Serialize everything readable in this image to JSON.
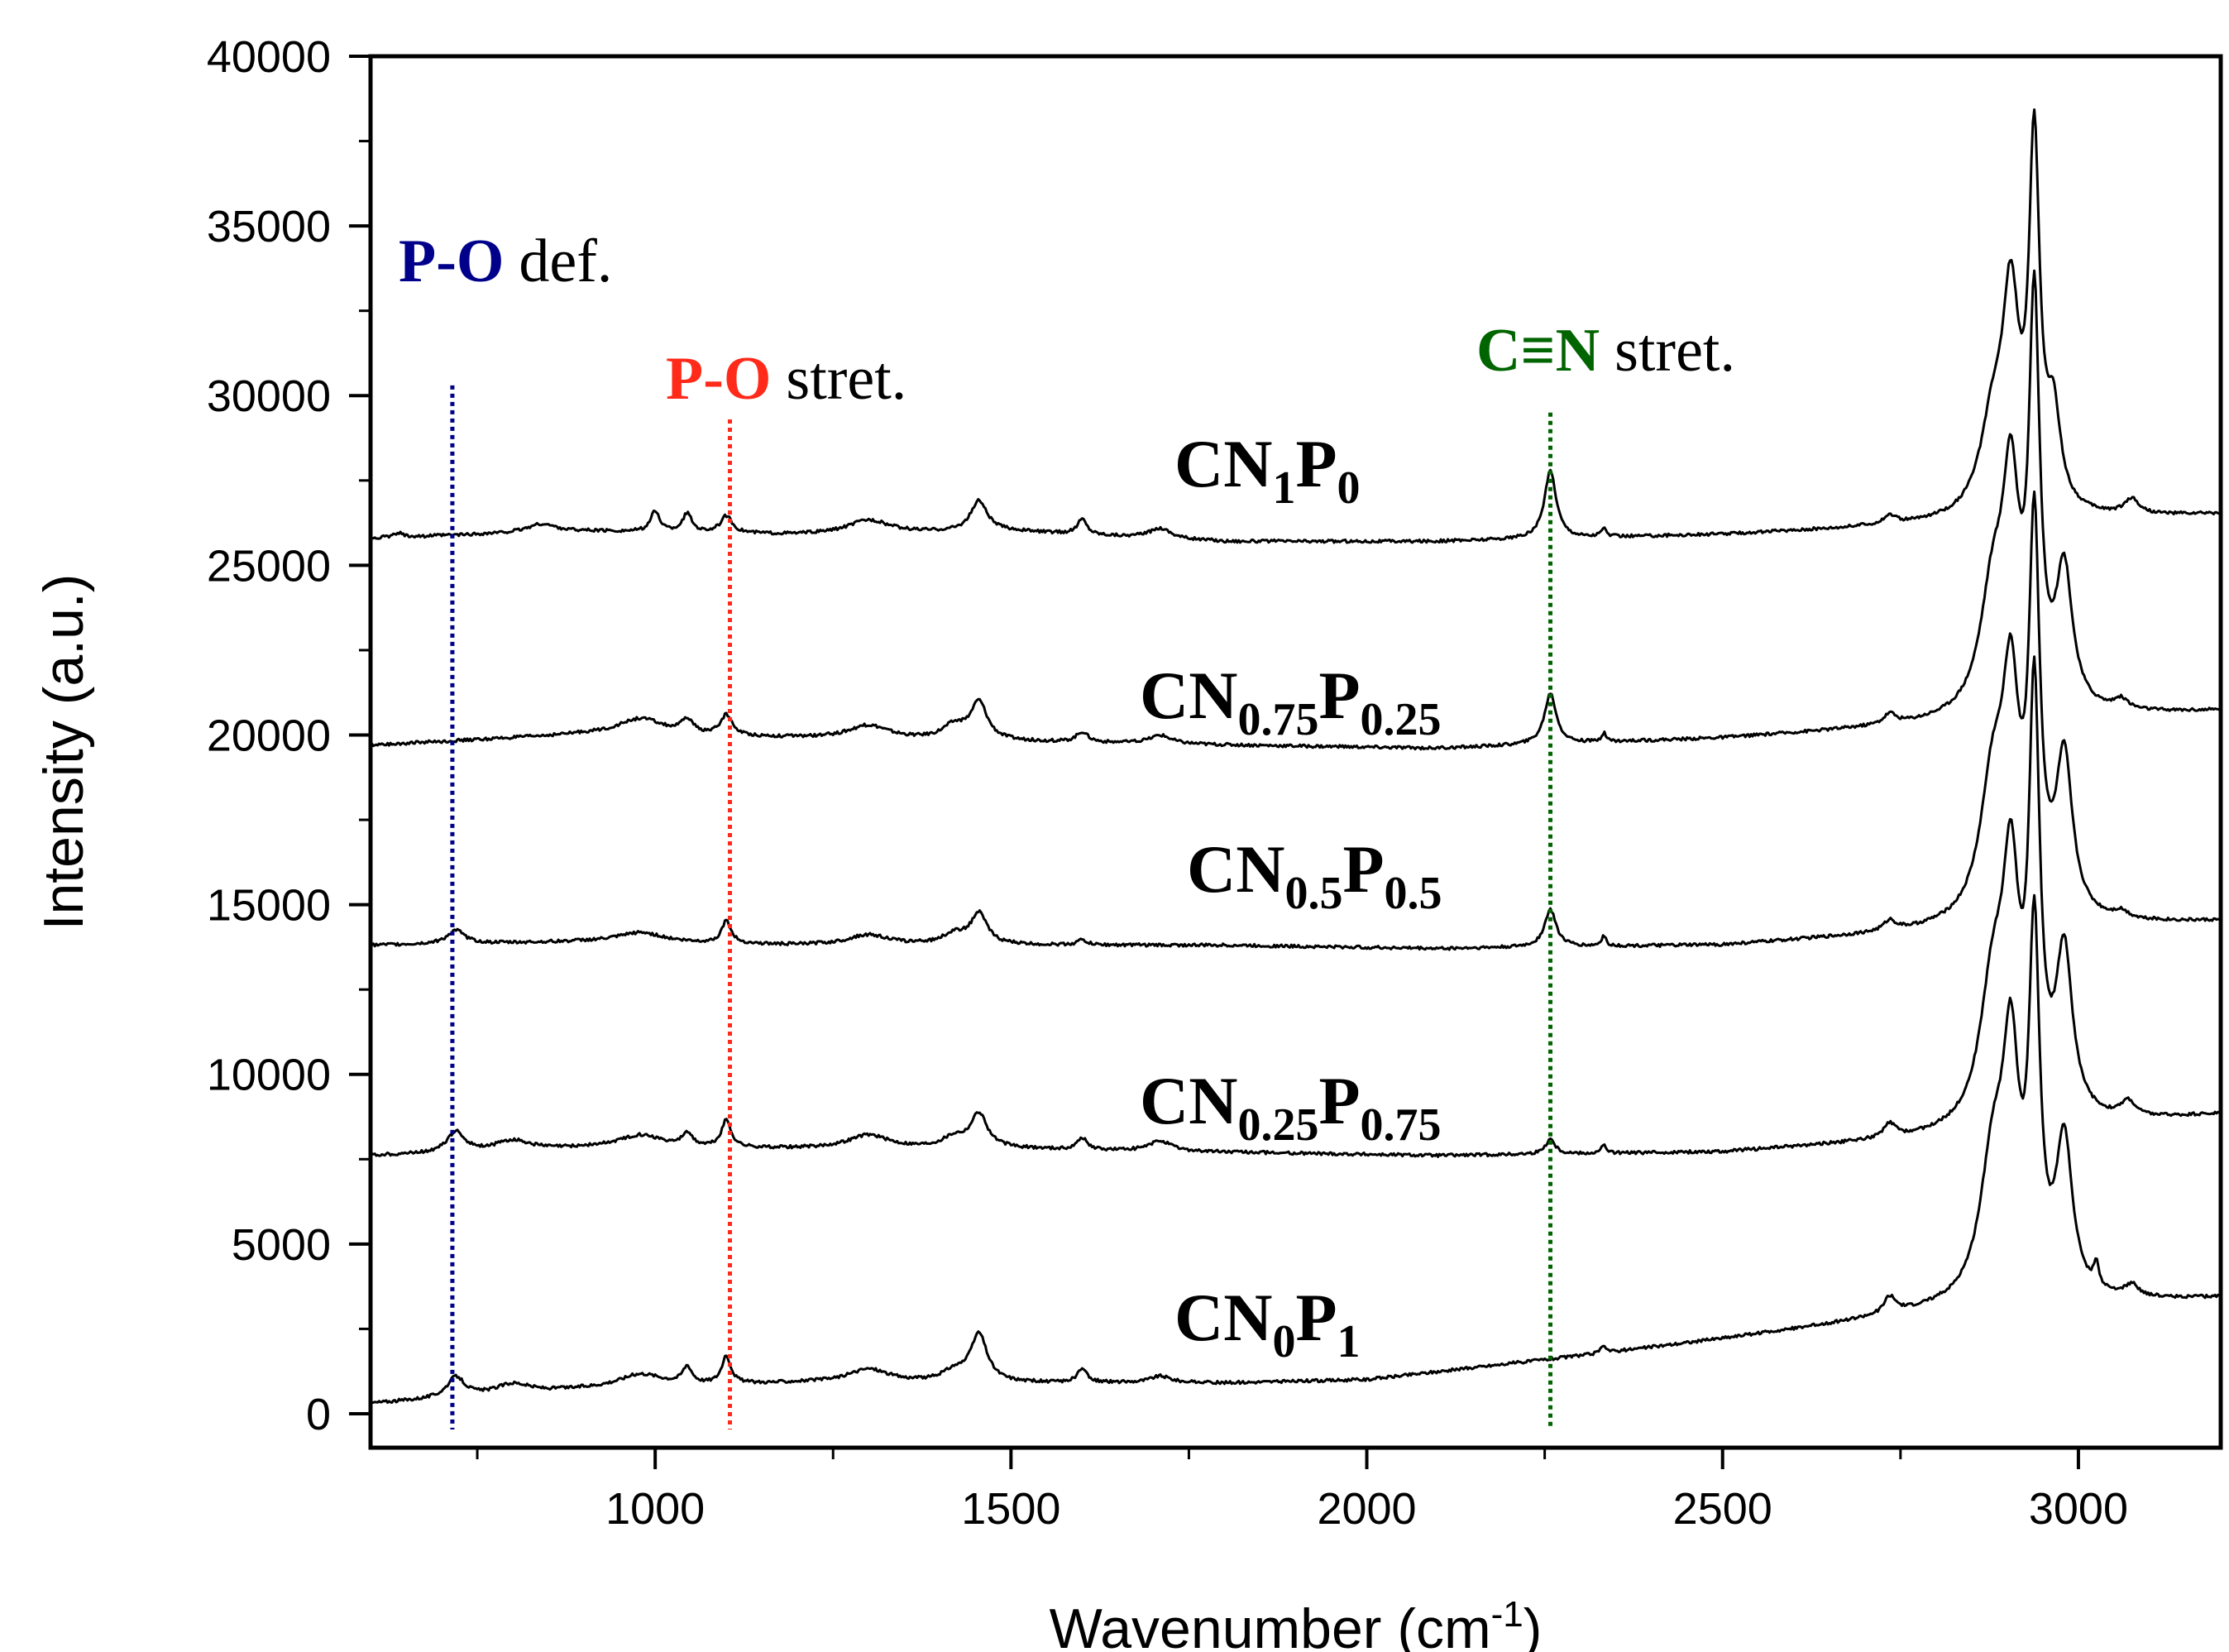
{
  "chart_data": {
    "type": "line",
    "title": "",
    "xlabel": "Wavenumber (cm",
    "xlabel_sup": "-1",
    "xlabel_close": ")",
    "ylabel": "Intensity (a.u.)",
    "xlim": [
      600,
      3200
    ],
    "ylim": [
      -1000,
      40000
    ],
    "xticks": [
      "1000",
      "1500",
      "2000",
      "2500",
      "3000"
    ],
    "yticks": [
      "0",
      "5000",
      "10000",
      "15000",
      "20000",
      "25000",
      "30000",
      "35000",
      "40000"
    ],
    "grid": false,
    "line_color": "#000000",
    "series": [
      {
        "name": "CN1P0",
        "label_main": [
          "CN",
          "P"
        ],
        "label_subs": [
          "1",
          "0"
        ],
        "baseline": [
          [
            600,
            25800
          ],
          [
            900,
            26000
          ],
          [
            1200,
            25900
          ],
          [
            1500,
            26000
          ],
          [
            1800,
            25700
          ],
          [
            2100,
            25700
          ],
          [
            2500,
            25900
          ],
          [
            2800,
            26200
          ],
          [
            3200,
            26500
          ]
        ],
        "peaks": [
          [
            640,
            120,
            8
          ],
          [
            840,
            250,
            25
          ],
          [
            1000,
            600,
            8
          ],
          [
            1045,
            550,
            8
          ],
          [
            1100,
            500,
            10
          ],
          [
            1300,
            400,
            35
          ],
          [
            1455,
            900,
            14
          ],
          [
            1600,
            450,
            8
          ],
          [
            1710,
            300,
            18
          ],
          [
            2258,
            2000,
            10
          ],
          [
            2333,
            250,
            4
          ],
          [
            2735,
            250,
            10
          ],
          [
            2880,
            2600,
            22
          ],
          [
            2905,
            5800,
            14
          ],
          [
            2938,
            10500,
            9
          ],
          [
            2965,
            2600,
            12
          ],
          [
            3075,
            450,
            12
          ]
        ]
      },
      {
        "name": "CN0.75P0.25",
        "label_main": [
          "CN",
          "P"
        ],
        "label_subs": [
          "0.75",
          "0.25"
        ],
        "baseline": [
          [
            600,
            19700
          ],
          [
            900,
            20000
          ],
          [
            1200,
            19900
          ],
          [
            1500,
            19800
          ],
          [
            1800,
            19700
          ],
          [
            2100,
            19600
          ],
          [
            2500,
            19900
          ],
          [
            2800,
            20300
          ],
          [
            3200,
            20700
          ]
        ],
        "peaks": [
          [
            980,
            500,
            40
          ],
          [
            1045,
            400,
            10
          ],
          [
            1100,
            600,
            10
          ],
          [
            1300,
            400,
            35
          ],
          [
            1420,
            400,
            20
          ],
          [
            1455,
            1100,
            14
          ],
          [
            1600,
            300,
            10
          ],
          [
            1710,
            250,
            18
          ],
          [
            2258,
            1500,
            10
          ],
          [
            2333,
            250,
            4
          ],
          [
            2735,
            300,
            10
          ],
          [
            2880,
            3500,
            22
          ],
          [
            2905,
            6000,
            14
          ],
          [
            2938,
            11500,
            9
          ],
          [
            2980,
            4000,
            14
          ],
          [
            3060,
            300,
            12
          ]
        ]
      },
      {
        "name": "CN0.5P0.5",
        "label_main": [
          "CN",
          "P"
        ],
        "label_subs": [
          "0.5",
          "0.5"
        ],
        "baseline": [
          [
            600,
            13800
          ],
          [
            900,
            13900
          ],
          [
            1200,
            13800
          ],
          [
            1500,
            13800
          ],
          [
            1800,
            13800
          ],
          [
            2100,
            13700
          ],
          [
            2500,
            13800
          ],
          [
            2800,
            14200
          ],
          [
            3200,
            14500
          ]
        ],
        "peaks": [
          [
            720,
            400,
            15
          ],
          [
            980,
            300,
            40
          ],
          [
            1100,
            650,
            8
          ],
          [
            1300,
            300,
            35
          ],
          [
            1420,
            300,
            20
          ],
          [
            1455,
            900,
            14
          ],
          [
            1600,
            150,
            8
          ],
          [
            2258,
            1100,
            10
          ],
          [
            2333,
            300,
            4
          ],
          [
            2735,
            300,
            10
          ],
          [
            2880,
            4000,
            22
          ],
          [
            2905,
            6000,
            14
          ],
          [
            2938,
            11000,
            9
          ],
          [
            2980,
            4600,
            14
          ],
          [
            3060,
            200,
            12
          ]
        ]
      },
      {
        "name": "CN0.25P0.75",
        "label_main": [
          "CN",
          "P"
        ],
        "label_subs": [
          "0.25",
          "0.75"
        ],
        "baseline": [
          [
            600,
            7600
          ],
          [
            900,
            7800
          ],
          [
            1200,
            7800
          ],
          [
            1500,
            7800
          ],
          [
            1800,
            7700
          ],
          [
            2100,
            7600
          ],
          [
            2500,
            7700
          ],
          [
            2800,
            8100
          ],
          [
            3200,
            8800
          ]
        ],
        "peaks": [
          [
            720,
            600,
            15
          ],
          [
            800,
            300,
            30
          ],
          [
            980,
            400,
            40
          ],
          [
            1045,
            400,
            8
          ],
          [
            1100,
            800,
            8
          ],
          [
            1300,
            400,
            35
          ],
          [
            1420,
            300,
            20
          ],
          [
            1455,
            1000,
            14
          ],
          [
            1600,
            350,
            8
          ],
          [
            1710,
            300,
            18
          ],
          [
            2258,
            450,
            8
          ],
          [
            2333,
            250,
            4
          ],
          [
            2735,
            400,
            10
          ],
          [
            2880,
            4000,
            22
          ],
          [
            2905,
            6500,
            14
          ],
          [
            2938,
            12000,
            9
          ],
          [
            2980,
            4800,
            14
          ],
          [
            3070,
            450,
            12
          ]
        ]
      },
      {
        "name": "CN0P1",
        "label_main": [
          "CN",
          "P"
        ],
        "label_subs": [
          "0",
          "1"
        ],
        "baseline": [
          [
            600,
            300
          ],
          [
            900,
            700
          ],
          [
            1200,
            900
          ],
          [
            1500,
            900
          ],
          [
            1800,
            900
          ],
          [
            2000,
            1000
          ],
          [
            2300,
            1700
          ],
          [
            2500,
            2200
          ],
          [
            2800,
            3000
          ],
          [
            3200,
            3400
          ]
        ],
        "peaks": [
          [
            720,
            600,
            15
          ],
          [
            800,
            300,
            30
          ],
          [
            980,
            400,
            40
          ],
          [
            1045,
            500,
            8
          ],
          [
            1100,
            800,
            8
          ],
          [
            1300,
            400,
            35
          ],
          [
            1420,
            300,
            20
          ],
          [
            1455,
            1400,
            14
          ],
          [
            1600,
            400,
            8
          ],
          [
            1710,
            200,
            18
          ],
          [
            2333,
            250,
            4
          ],
          [
            2735,
            500,
            10
          ],
          [
            2880,
            4000,
            22
          ],
          [
            2905,
            6500,
            14
          ],
          [
            2938,
            10200,
            9
          ],
          [
            2980,
            4500,
            14
          ],
          [
            3025,
            700,
            4
          ],
          [
            3075,
            350,
            12
          ]
        ]
      }
    ],
    "annotations": [
      {
        "name": "po-def",
        "bold_text": "P-O",
        "text": "def.",
        "color": "#00008b",
        "x": 715,
        "y_top": 30300
      },
      {
        "name": "po-stret",
        "bold_text": "P-O",
        "text": "stret.",
        "color": "#ff2a1a",
        "x": 1105,
        "y_top": 29300
      },
      {
        "name": "cn-stret",
        "bold_text": "C≡N",
        "text": "stret.",
        "color": "#006400",
        "x": 2258,
        "y_top": 29500
      }
    ]
  }
}
